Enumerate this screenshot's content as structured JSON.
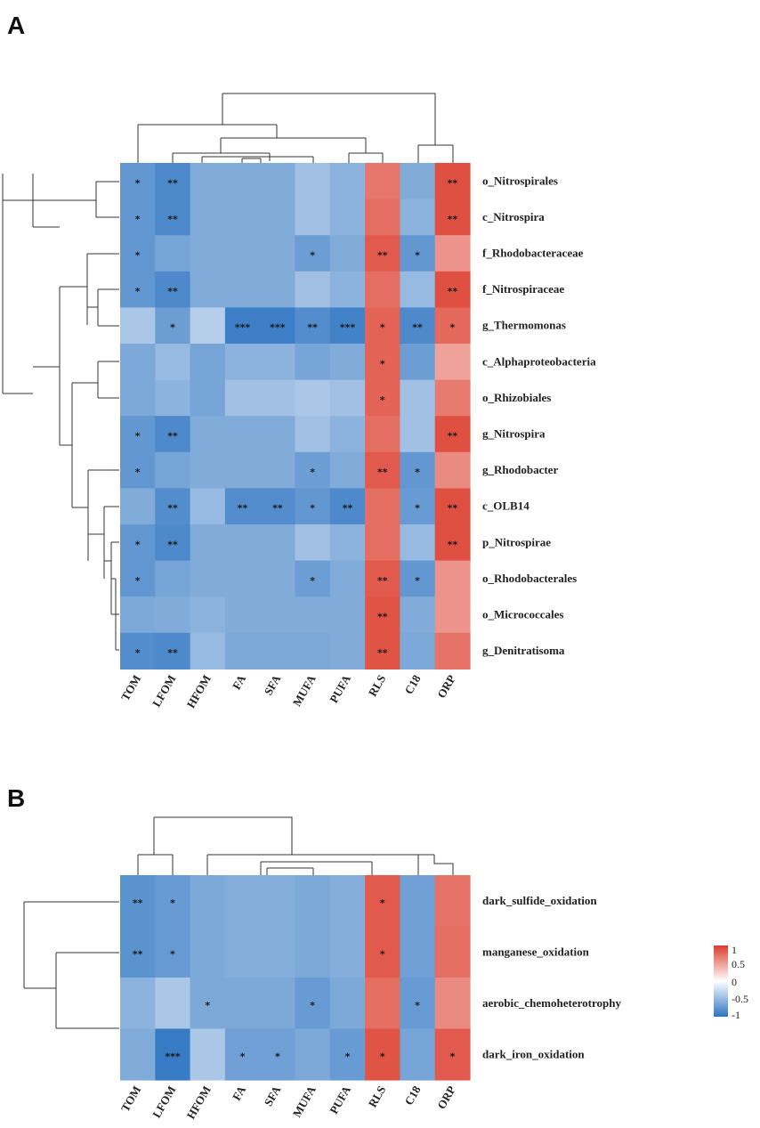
{
  "chart_data": [
    {
      "panel": "A",
      "type": "heatmap",
      "columns": [
        "TOM",
        "LFOM",
        "HFOM",
        "FA",
        "SFA",
        "MUFA",
        "PUFA",
        "RLS",
        "C18",
        "ORP"
      ],
      "rows": [
        "o_Nitrospirales",
        "c_Nitrospira",
        "f_Rhodobacteraceae",
        "f_Nitrospiraceae",
        "g_Thermomonas",
        "c_Alphaproteobacteria",
        "o_Rhizobiales",
        "g_Nitrospira",
        "g_Rhodobacter",
        "c_OLB14",
        "p_Nitrospirae",
        "o_Rhodobacterales",
        "o_Micrococcales",
        "g_Denitratisoma"
      ],
      "values": [
        [
          -0.75,
          -0.85,
          -0.6,
          -0.6,
          -0.6,
          -0.45,
          -0.55,
          0.7,
          -0.6,
          0.9
        ],
        [
          -0.75,
          -0.85,
          -0.6,
          -0.6,
          -0.6,
          -0.45,
          -0.55,
          0.75,
          -0.55,
          0.9
        ],
        [
          -0.75,
          -0.65,
          -0.6,
          -0.6,
          -0.6,
          -0.7,
          -0.6,
          0.85,
          -0.75,
          0.55
        ],
        [
          -0.75,
          -0.85,
          -0.6,
          -0.6,
          -0.6,
          -0.45,
          -0.55,
          0.75,
          -0.5,
          0.9
        ],
        [
          -0.4,
          -0.7,
          -0.35,
          -0.92,
          -0.92,
          -0.82,
          -0.9,
          0.8,
          -0.85,
          0.78
        ],
        [
          -0.62,
          -0.5,
          -0.65,
          -0.55,
          -0.55,
          -0.65,
          -0.6,
          0.8,
          -0.7,
          0.48
        ],
        [
          -0.62,
          -0.55,
          -0.65,
          -0.45,
          -0.45,
          -0.4,
          -0.45,
          0.8,
          -0.45,
          0.68
        ],
        [
          -0.75,
          -0.85,
          -0.6,
          -0.6,
          -0.6,
          -0.45,
          -0.55,
          0.75,
          -0.45,
          0.9
        ],
        [
          -0.75,
          -0.65,
          -0.6,
          -0.6,
          -0.6,
          -0.7,
          -0.6,
          0.85,
          -0.75,
          0.6
        ],
        [
          -0.6,
          -0.82,
          -0.5,
          -0.82,
          -0.82,
          -0.75,
          -0.85,
          0.75,
          -0.72,
          0.9
        ],
        [
          -0.75,
          -0.85,
          -0.6,
          -0.6,
          -0.6,
          -0.45,
          -0.55,
          0.75,
          -0.5,
          0.9
        ],
        [
          -0.75,
          -0.65,
          -0.6,
          -0.6,
          -0.6,
          -0.7,
          -0.6,
          0.85,
          -0.75,
          0.55
        ],
        [
          -0.62,
          -0.6,
          -0.55,
          -0.6,
          -0.6,
          -0.6,
          -0.6,
          0.88,
          -0.6,
          0.55
        ],
        [
          -0.82,
          -0.85,
          -0.5,
          -0.62,
          -0.62,
          -0.62,
          -0.6,
          0.88,
          -0.62,
          0.72
        ]
      ],
      "significance": [
        [
          "*",
          "**",
          "",
          "",
          "",
          "",
          "",
          "",
          "",
          "**"
        ],
        [
          "*",
          "**",
          "",
          "",
          "",
          "",
          "",
          "",
          "",
          "**"
        ],
        [
          "*",
          "",
          "",
          "",
          "",
          "*",
          "",
          "**",
          "*",
          ""
        ],
        [
          "*",
          "**",
          "",
          "",
          "",
          "",
          "",
          "",
          "",
          "**"
        ],
        [
          "",
          "*",
          "",
          "***",
          "***",
          "**",
          "***",
          "*",
          "**",
          "*"
        ],
        [
          "",
          "",
          "",
          "",
          "",
          "",
          "",
          "*",
          "",
          ""
        ],
        [
          "",
          "",
          "",
          "",
          "",
          "",
          "",
          "*",
          "",
          ""
        ],
        [
          "*",
          "**",
          "",
          "",
          "",
          "",
          "",
          "",
          "",
          "**"
        ],
        [
          "*",
          "",
          "",
          "",
          "",
          "*",
          "",
          "**",
          "*",
          ""
        ],
        [
          "",
          "**",
          "",
          "**",
          "**",
          "*",
          "**",
          "",
          "*",
          "**"
        ],
        [
          "*",
          "**",
          "",
          "",
          "",
          "",
          "",
          "",
          "",
          "**"
        ],
        [
          "*",
          "",
          "",
          "",
          "",
          "*",
          "",
          "**",
          "*",
          ""
        ],
        [
          "",
          "",
          "",
          "",
          "",
          "",
          "",
          "**",
          "",
          ""
        ],
        [
          "*",
          "**",
          "",
          "",
          "",
          "",
          "",
          "**",
          "",
          ""
        ]
      ],
      "row_dendrogram": "hierarchical clustering of rows (left)",
      "col_dendrogram": "hierarchical clustering of columns (top)"
    },
    {
      "panel": "B",
      "type": "heatmap",
      "columns": [
        "TOM",
        "LFOM",
        "HFOM",
        "FA",
        "SFA",
        "MUFA",
        "PUFA",
        "RLS",
        "C18",
        "ORP"
      ],
      "rows": [
        "dark_sulfide_oxidation",
        "manganese_oxidation",
        "aerobic_chemoheterotrophy",
        "dark_iron_oxidation"
      ],
      "values": [
        [
          -0.78,
          -0.72,
          -0.62,
          -0.58,
          -0.58,
          -0.62,
          -0.58,
          0.85,
          -0.68,
          0.72
        ],
        [
          -0.78,
          -0.72,
          -0.62,
          -0.58,
          -0.58,
          -0.62,
          -0.58,
          0.85,
          -0.68,
          0.75
        ],
        [
          -0.55,
          -0.4,
          -0.62,
          -0.62,
          -0.62,
          -0.72,
          -0.62,
          0.75,
          -0.72,
          0.6
        ],
        [
          -0.6,
          -0.95,
          -0.4,
          -0.68,
          -0.68,
          -0.62,
          -0.72,
          0.88,
          -0.65,
          0.85
        ]
      ],
      "significance": [
        [
          "**",
          "*",
          "",
          "",
          "",
          "",
          "",
          "*",
          "",
          ""
        ],
        [
          "**",
          "*",
          "",
          "",
          "",
          "",
          "",
          "*",
          "",
          ""
        ],
        [
          "",
          "",
          "*",
          "",
          "",
          "*",
          "",
          "",
          "*",
          ""
        ],
        [
          "",
          "***",
          "",
          "*",
          "*",
          "",
          "*",
          "*",
          "",
          "*"
        ]
      ],
      "legend": {
        "ticks": [
          "1",
          "0.5",
          "0",
          "-0.5",
          "-1"
        ],
        "range": [
          -1,
          1
        ]
      }
    }
  ],
  "panels": {
    "a_letter": "A",
    "b_letter": "B"
  },
  "colors": {
    "negative": "#2d74c2",
    "neutral": "#ffffff",
    "positive": "#dc3d2d",
    "text": "#222222"
  }
}
